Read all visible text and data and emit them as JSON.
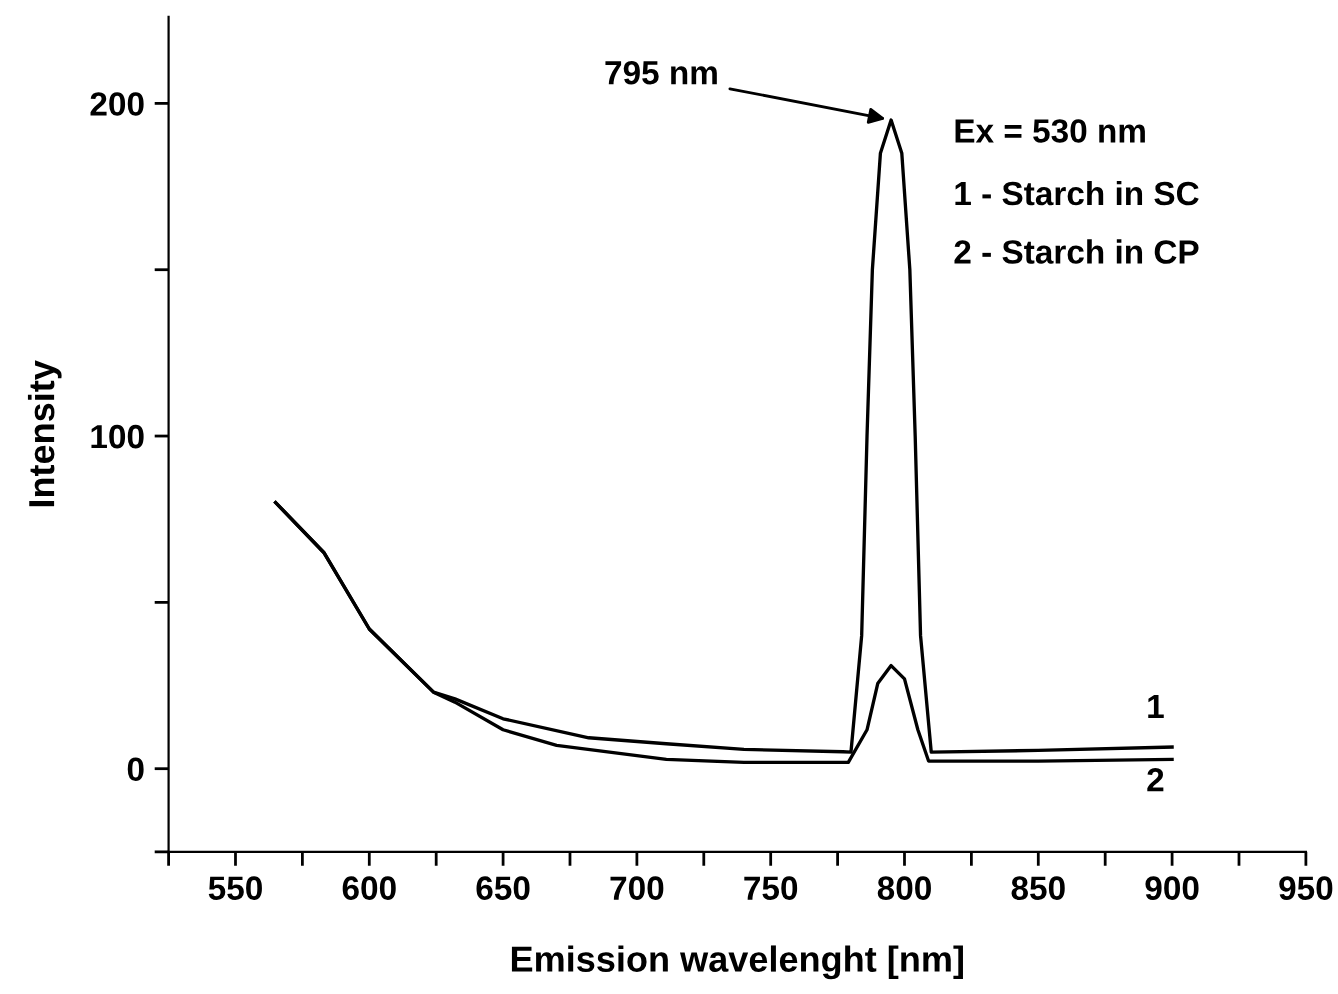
{
  "chart_data": {
    "type": "line",
    "xlabel": "Emission wavelenght [nm]",
    "ylabel": "Intensity",
    "xlim": [
      525,
      950
    ],
    "ylim": [
      -25,
      226
    ],
    "xticks": [
      {
        "value": 525,
        "label": null
      },
      550,
      {
        "value": 575,
        "label": null
      },
      600,
      {
        "value": 625,
        "label": null
      },
      650,
      {
        "value": 675,
        "label": null
      },
      700,
      {
        "value": 725,
        "label": null
      },
      750,
      {
        "value": 775,
        "label": null
      },
      800,
      {
        "value": 825,
        "label": null
      },
      850,
      {
        "value": 875,
        "label": null
      },
      900,
      {
        "value": 925,
        "label": null
      },
      950
    ],
    "yticks": [
      {
        "value": -25,
        "label": null
      },
      0,
      {
        "value": 50,
        "label": null
      },
      100,
      {
        "value": 150,
        "label": null
      },
      200
    ],
    "grid": false,
    "legend": false,
    "marker": "none",
    "line_style": "solid",
    "series": [
      {
        "name": "1",
        "color": "#000000",
        "x": [
          565,
          583,
          600,
          624,
          632,
          650,
          682,
          711,
          740,
          777,
          780,
          784,
          786,
          788,
          791,
          795,
          799,
          802,
          804,
          806,
          810,
          850,
          900
        ],
        "values": [
          80,
          65,
          42,
          23,
          21,
          15,
          9.3,
          7.5,
          5.8,
          5.1,
          5,
          40,
          100,
          150,
          185,
          195,
          185,
          150,
          100,
          40,
          5,
          5.5,
          6.5
        ]
      },
      {
        "name": "2",
        "color": "#000000",
        "x": [
          565,
          583,
          600,
          624,
          632,
          650,
          670,
          711,
          740,
          779,
          786,
          790,
          795,
          800,
          805,
          809,
          850,
          900
        ],
        "values": [
          80,
          65,
          42,
          23,
          20,
          11.7,
          7,
          2.8,
          1.9,
          1.9,
          11.7,
          25.6,
          31,
          27,
          11.7,
          2.3,
          2.3,
          2.8
        ]
      }
    ],
    "annotations": [
      {
        "text": "795 nm",
        "x": 795,
        "y": 195
      },
      "Ex = 530 nm",
      "1 - Starch in SC",
      "2 - Starch in CP"
    ]
  }
}
